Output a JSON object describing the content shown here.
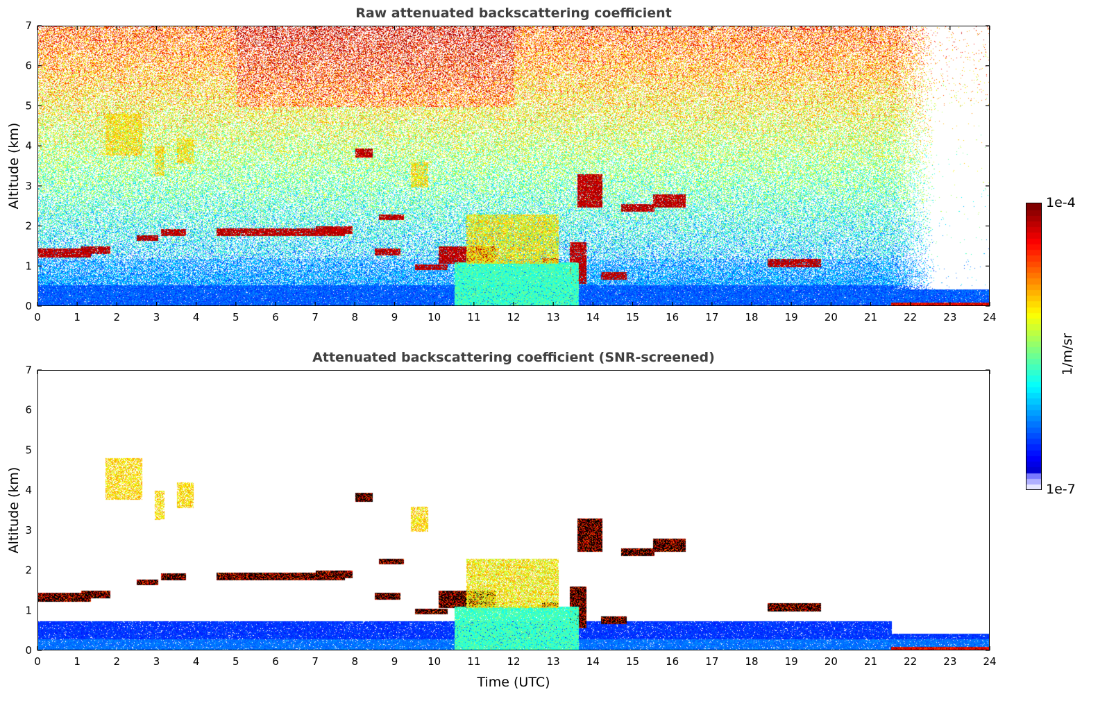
{
  "chart_data": [
    {
      "type": "heatmap",
      "title": "Raw attenuated backscattering coefficient",
      "xlabel": "",
      "ylabel": "Altitude (km)",
      "xlim": [
        0,
        24
      ],
      "ylim": [
        0,
        7
      ],
      "xticks": [
        "0",
        "1",
        "2",
        "3",
        "4",
        "5",
        "6",
        "7",
        "8",
        "9",
        "10",
        "11",
        "12",
        "13",
        "14",
        "15",
        "16",
        "17",
        "18",
        "19",
        "20",
        "21",
        "22",
        "23",
        "24"
      ],
      "yticks": [
        "0",
        "1",
        "2",
        "3",
        "4",
        "5",
        "6",
        "7"
      ],
      "layers": [
        {
          "feature": "boundary layer",
          "t0": 0,
          "t1": 24,
          "z0": 0,
          "z1": 0.6
        },
        {
          "feature": "cloud",
          "t0": 0.0,
          "t1": 1.3,
          "z0": 1.25,
          "z1": 1.45
        },
        {
          "feature": "cloud",
          "t0": 1.1,
          "t1": 1.8,
          "z0": 1.35,
          "z1": 1.5
        },
        {
          "feature": "cloud",
          "t0": 2.5,
          "t1": 3.0,
          "z0": 1.68,
          "z1": 1.78
        },
        {
          "feature": "cloud",
          "t0": 3.1,
          "t1": 3.7,
          "z0": 1.8,
          "z1": 1.93
        },
        {
          "feature": "cloud",
          "t0": 4.5,
          "t1": 7.7,
          "z0": 1.8,
          "z1": 1.95
        },
        {
          "feature": "cloud",
          "t0": 7.0,
          "t1": 7.9,
          "z0": 1.85,
          "z1": 2.0
        },
        {
          "feature": "cloud",
          "t0": 8.0,
          "t1": 8.4,
          "z0": 3.75,
          "z1": 3.95
        },
        {
          "feature": "cloud",
          "t0": 8.6,
          "t1": 9.2,
          "z0": 2.2,
          "z1": 2.3
        },
        {
          "feature": "cloud",
          "t0": 8.5,
          "t1": 9.1,
          "z0": 1.3,
          "z1": 1.45
        },
        {
          "feature": "cloud",
          "t0": 9.5,
          "t1": 10.3,
          "z0": 0.95,
          "z1": 1.05
        },
        {
          "feature": "cloud",
          "t0": 10.1,
          "t1": 11.5,
          "z0": 1.1,
          "z1": 1.5
        },
        {
          "feature": "cloud",
          "t0": 12.7,
          "t1": 13.1,
          "z0": 1.1,
          "z1": 1.2
        },
        {
          "feature": "cloud",
          "t0": 13.4,
          "t1": 13.8,
          "z0": 0.6,
          "z1": 1.6
        },
        {
          "feature": "cloud",
          "t0": 13.6,
          "t1": 14.2,
          "z0": 2.5,
          "z1": 3.3
        },
        {
          "feature": "cloud",
          "t0": 14.2,
          "t1": 14.8,
          "z0": 0.7,
          "z1": 0.85
        },
        {
          "feature": "cloud",
          "t0": 14.7,
          "t1": 15.5,
          "z0": 2.4,
          "z1": 2.55
        },
        {
          "feature": "cloud",
          "t0": 15.5,
          "t1": 16.3,
          "z0": 2.5,
          "z1": 2.8
        },
        {
          "feature": "cloud",
          "t0": 18.4,
          "t1": 19.7,
          "z0": 1.02,
          "z1": 1.18
        },
        {
          "feature": "cirrus",
          "t0": 1.7,
          "t1": 2.6,
          "z0": 3.8,
          "z1": 4.8
        },
        {
          "feature": "cirrus",
          "t0": 2.95,
          "t1": 3.15,
          "z0": 3.3,
          "z1": 4.0
        },
        {
          "feature": "cirrus",
          "t0": 3.5,
          "t1": 3.9,
          "z0": 3.6,
          "z1": 4.2
        },
        {
          "feature": "cirrus",
          "t0": 9.4,
          "t1": 9.8,
          "z0": 3.0,
          "z1": 3.6
        },
        {
          "feature": "precipitation",
          "t0": 10.5,
          "t1": 13.6,
          "z0": 0,
          "z1": 1.1
        },
        {
          "feature": "aerosol",
          "t0": 10.8,
          "t1": 13.1,
          "z0": 1.1,
          "z1": 2.3
        },
        {
          "feature": "surface",
          "t0": 21.5,
          "t1": 24,
          "z0": 0,
          "z1": 0.1
        }
      ]
    },
    {
      "type": "heatmap",
      "title": "Attenuated backscattering coefficient (SNR-screened)",
      "xlabel": "Time (UTC)",
      "ylabel": "Altitude (km)",
      "xlim": [
        0,
        24
      ],
      "ylim": [
        0,
        7
      ],
      "xticks": [
        "0",
        "1",
        "2",
        "3",
        "4",
        "5",
        "6",
        "7",
        "8",
        "9",
        "10",
        "11",
        "12",
        "13",
        "14",
        "15",
        "16",
        "17",
        "18",
        "19",
        "20",
        "21",
        "22",
        "23",
        "24"
      ],
      "yticks": [
        "0",
        "1",
        "2",
        "3",
        "4",
        "5",
        "6",
        "7"
      ],
      "screened": true
    }
  ],
  "colorbar": {
    "max_label": "1e-4",
    "min_label": "1e-7",
    "unit_label": "1/m/sr",
    "scale": "log",
    "range": [
      1e-07,
      0.0001
    ]
  }
}
